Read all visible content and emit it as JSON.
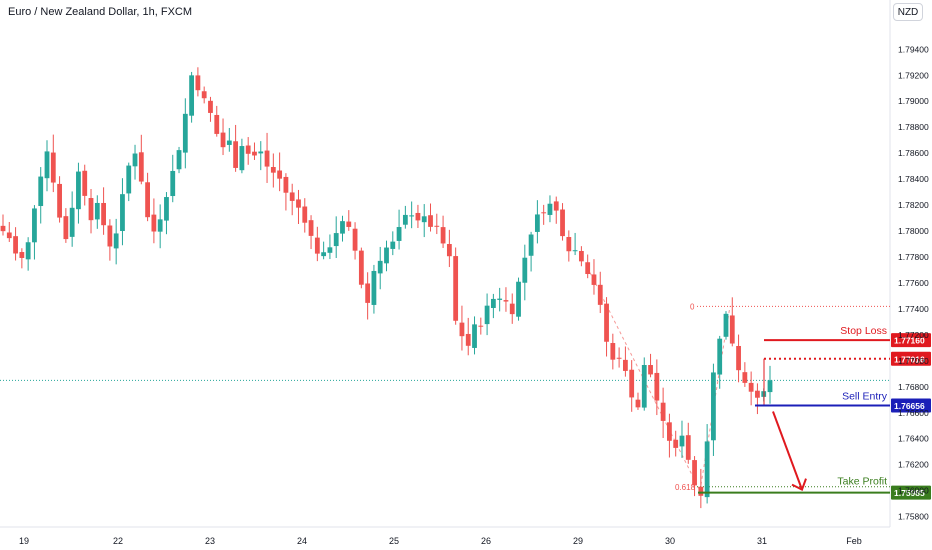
{
  "header": {
    "title": "Euro / New Zealand Dollar, 1h, FXCM",
    "currency": "NZD"
  },
  "chart_data": {
    "type": "candlestick",
    "ylim": [
      1.7572,
      1.7978
    ],
    "y_ticks": [
      "1.79400",
      "1.79200",
      "1.79000",
      "1.78800",
      "1.78600",
      "1.78400",
      "1.78200",
      "1.78000",
      "1.77800",
      "1.77600",
      "1.77400",
      "1.77200",
      "1.77000",
      "1.76800",
      "1.76600",
      "1.76400",
      "1.76200",
      "1.76000",
      "1.75800"
    ],
    "x_ticks": [
      "19",
      "22",
      "23",
      "24",
      "25",
      "26",
      "29",
      "30",
      "31",
      "Feb"
    ],
    "current_price": 1.7685,
    "levels": {
      "stop_loss": {
        "label": "Stop Loss",
        "value": 1.7716,
        "price_label": "1.77160",
        "color": "#e0191f"
      },
      "entry_high": {
        "value": 1.77016,
        "price_label": "1.77016",
        "color": "#e0191f"
      },
      "sell_entry": {
        "label": "Sell Entry",
        "value": 1.76656,
        "price_label": "1.76656",
        "color": "#1b1fb8"
      },
      "take_profit": {
        "label": "Take Profit",
        "value": 1.75985,
        "price_label": "1.75985",
        "color": "#3a7d1e"
      }
    },
    "fib": {
      "level_0": "0",
      "level_0618": "0.618",
      "high": 1.7742,
      "low": 1.7599
    },
    "colors": {
      "up": "#26a69a",
      "down": "#ef5350"
    },
    "path": [
      1.78,
      1.7795,
      1.7782,
      1.7778,
      1.779,
      1.782,
      1.7845,
      1.7862,
      1.784,
      1.781,
      1.7795,
      1.782,
      1.7845,
      1.783,
      1.7812,
      1.7818,
      1.7805,
      1.779,
      1.78,
      1.7825,
      1.785,
      1.7862,
      1.784,
      1.781,
      1.78,
      1.7812,
      1.783,
      1.7845,
      1.7865,
      1.789,
      1.792,
      1.7912,
      1.79,
      1.789,
      1.7875,
      1.7865,
      1.7868,
      1.7852,
      1.7868,
      1.786,
      1.7858,
      1.786,
      1.785,
      1.7845,
      1.784,
      1.783,
      1.7822,
      1.7818,
      1.781,
      1.7795,
      1.7785,
      1.778,
      1.779,
      1.78,
      1.7805,
      1.78,
      1.7785,
      1.776,
      1.7745,
      1.777,
      1.778,
      1.7787,
      1.779,
      1.78,
      1.781,
      1.7815,
      1.781,
      1.7808,
      1.7805,
      1.78,
      1.779,
      1.7778,
      1.773,
      1.772,
      1.7712,
      1.7725,
      1.773,
      1.774,
      1.7748,
      1.775,
      1.7745,
      1.774,
      1.776,
      1.778,
      1.78,
      1.781,
      1.7818,
      1.782,
      1.7815,
      1.78,
      1.7788,
      1.7785,
      1.778,
      1.777,
      1.776,
      1.774,
      1.7715,
      1.77,
      1.7705,
      1.769,
      1.7675,
      1.7665,
      1.7695,
      1.769,
      1.767,
      1.765,
      1.764,
      1.763,
      1.7645,
      1.7625,
      1.7605,
      1.76,
      1.764,
      1.769,
      1.772,
      1.7735,
      1.7715,
      1.7695,
      1.7685,
      1.768,
      1.7668,
      1.7675,
      1.7685
    ]
  },
  "annotations": {
    "stop_loss": "Stop Loss",
    "sell_entry": "Sell Entry",
    "take_profit": "Take Profit"
  }
}
